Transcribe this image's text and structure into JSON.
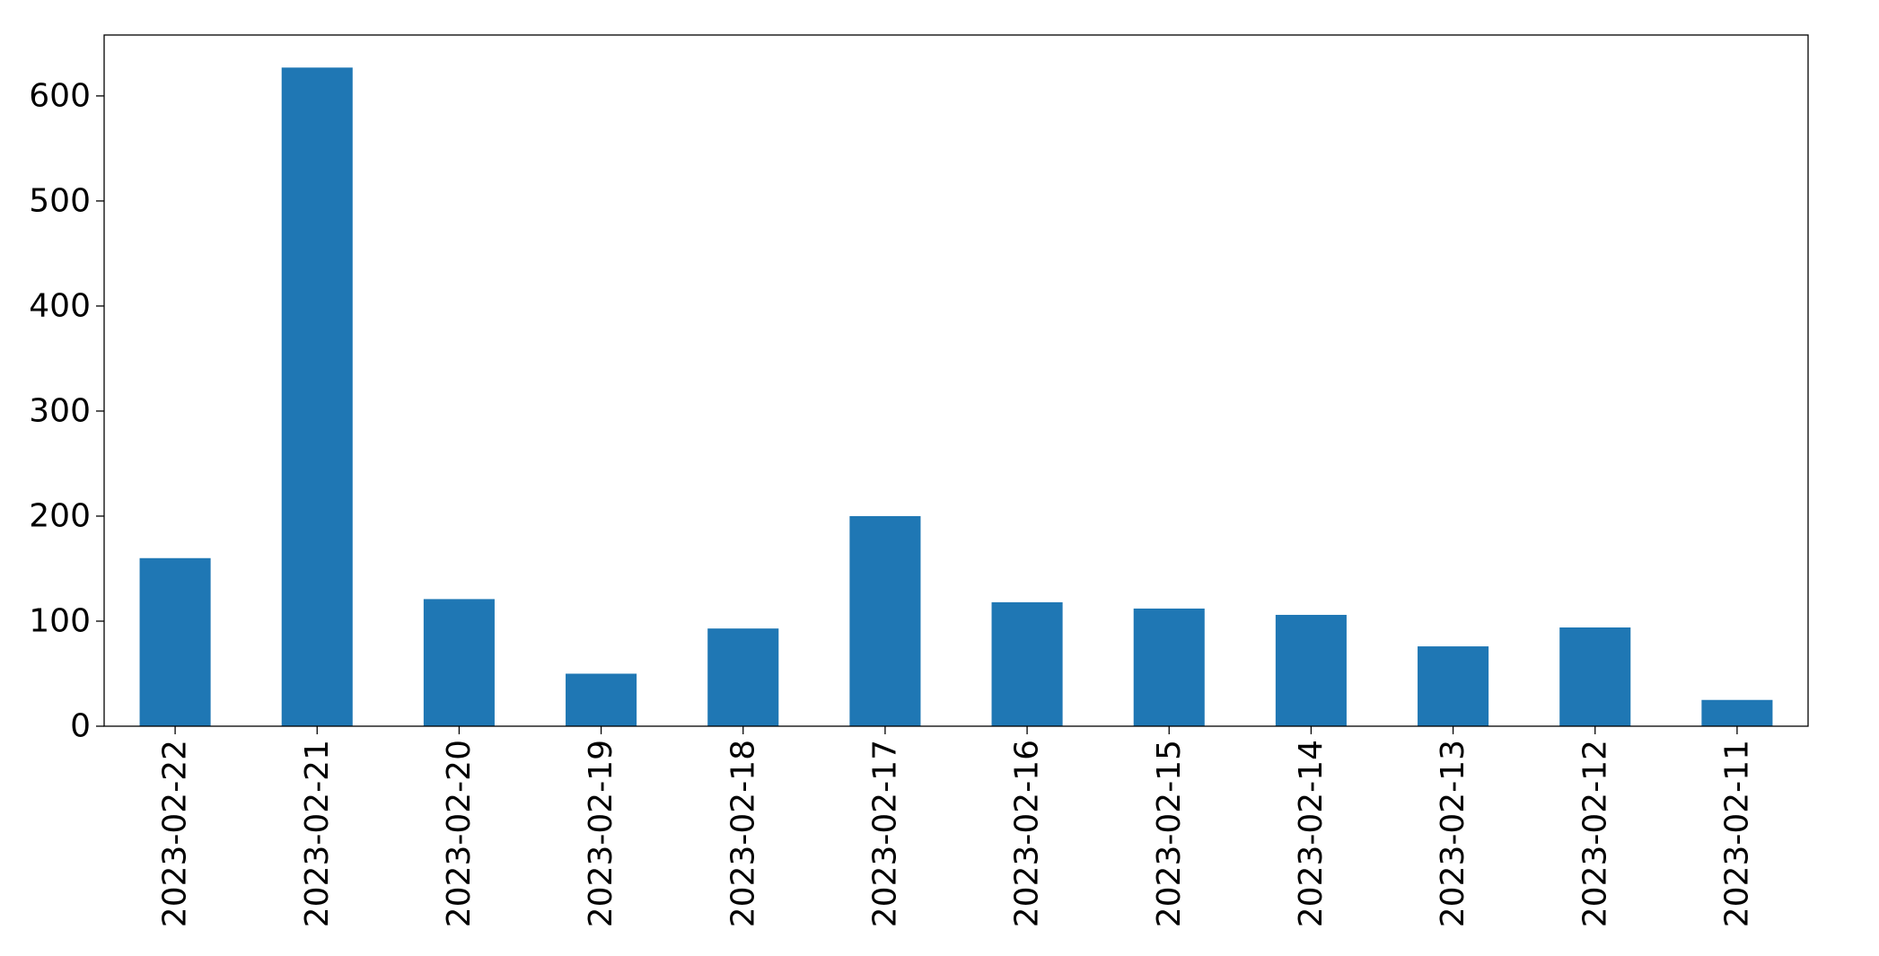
{
  "chart_data": {
    "type": "bar",
    "title": "",
    "xlabel": "",
    "ylabel": "",
    "categories": [
      "2023-02-22",
      "2023-02-21",
      "2023-02-20",
      "2023-02-19",
      "2023-02-18",
      "2023-02-17",
      "2023-02-16",
      "2023-02-15",
      "2023-02-14",
      "2023-02-13",
      "2023-02-12",
      "2023-02-11"
    ],
    "series": [
      {
        "values": [
          160,
          627,
          121,
          50,
          93,
          200,
          118,
          112,
          106,
          76,
          94,
          25
        ],
        "color": "#1f77b4"
      }
    ],
    "ylim": [
      0,
      658
    ],
    "yticks": [
      0,
      100,
      200,
      300,
      400,
      500,
      600
    ],
    "grid": false,
    "legend": "none",
    "x_tick_rotation": "vertical"
  }
}
